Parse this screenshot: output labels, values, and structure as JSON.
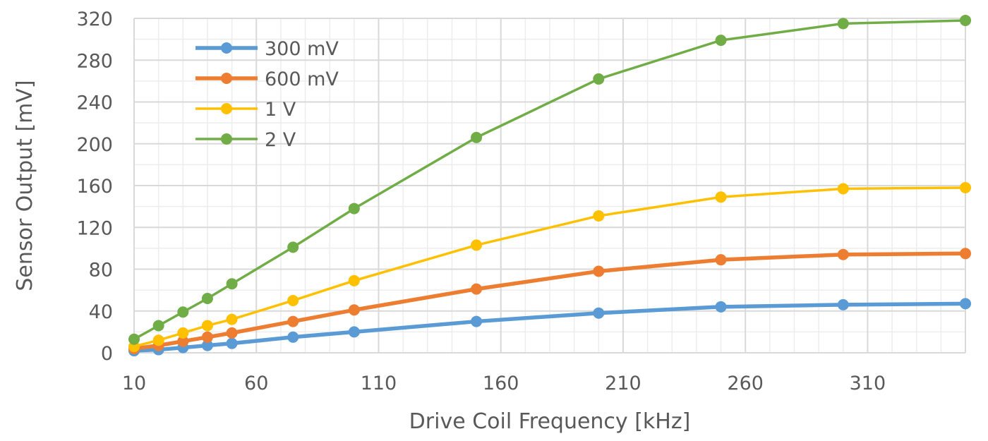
{
  "chart_data": {
    "type": "line",
    "title": "",
    "xlabel": "Drive Coil Frequency [kHz]",
    "ylabel": "Sensor Output [mV]",
    "xlim": [
      10,
      350
    ],
    "ylim": [
      0,
      320
    ],
    "x_major_ticks": [
      10,
      60,
      110,
      160,
      210,
      260,
      310
    ],
    "x_minor_step": 10,
    "y_ticks": [
      0,
      40,
      80,
      120,
      160,
      200,
      240,
      280,
      320
    ],
    "y_minor_step": 20,
    "grid": true,
    "legend_position": "top-left",
    "x": [
      10,
      20,
      30,
      40,
      50,
      75,
      100,
      150,
      200,
      250,
      300,
      350
    ],
    "series": [
      {
        "name": "300 mV",
        "color": "#5B9BD5",
        "values": [
          2,
          3,
          5,
          7,
          9,
          15,
          20,
          30,
          38,
          44,
          46,
          47
        ]
      },
      {
        "name": "600 mV",
        "color": "#ED7D31",
        "values": [
          4,
          7,
          11,
          15,
          19,
          30,
          41,
          61,
          78,
          89,
          94,
          95
        ]
      },
      {
        "name": "1 V",
        "color": "#FFC000",
        "values": [
          6,
          12,
          19,
          26,
          32,
          50,
          69,
          103,
          131,
          149,
          157,
          158
        ]
      },
      {
        "name": "2 V",
        "color": "#70AD47",
        "values": [
          13,
          26,
          39,
          52,
          66,
          101,
          138,
          206,
          262,
          299,
          315,
          318
        ]
      }
    ]
  }
}
